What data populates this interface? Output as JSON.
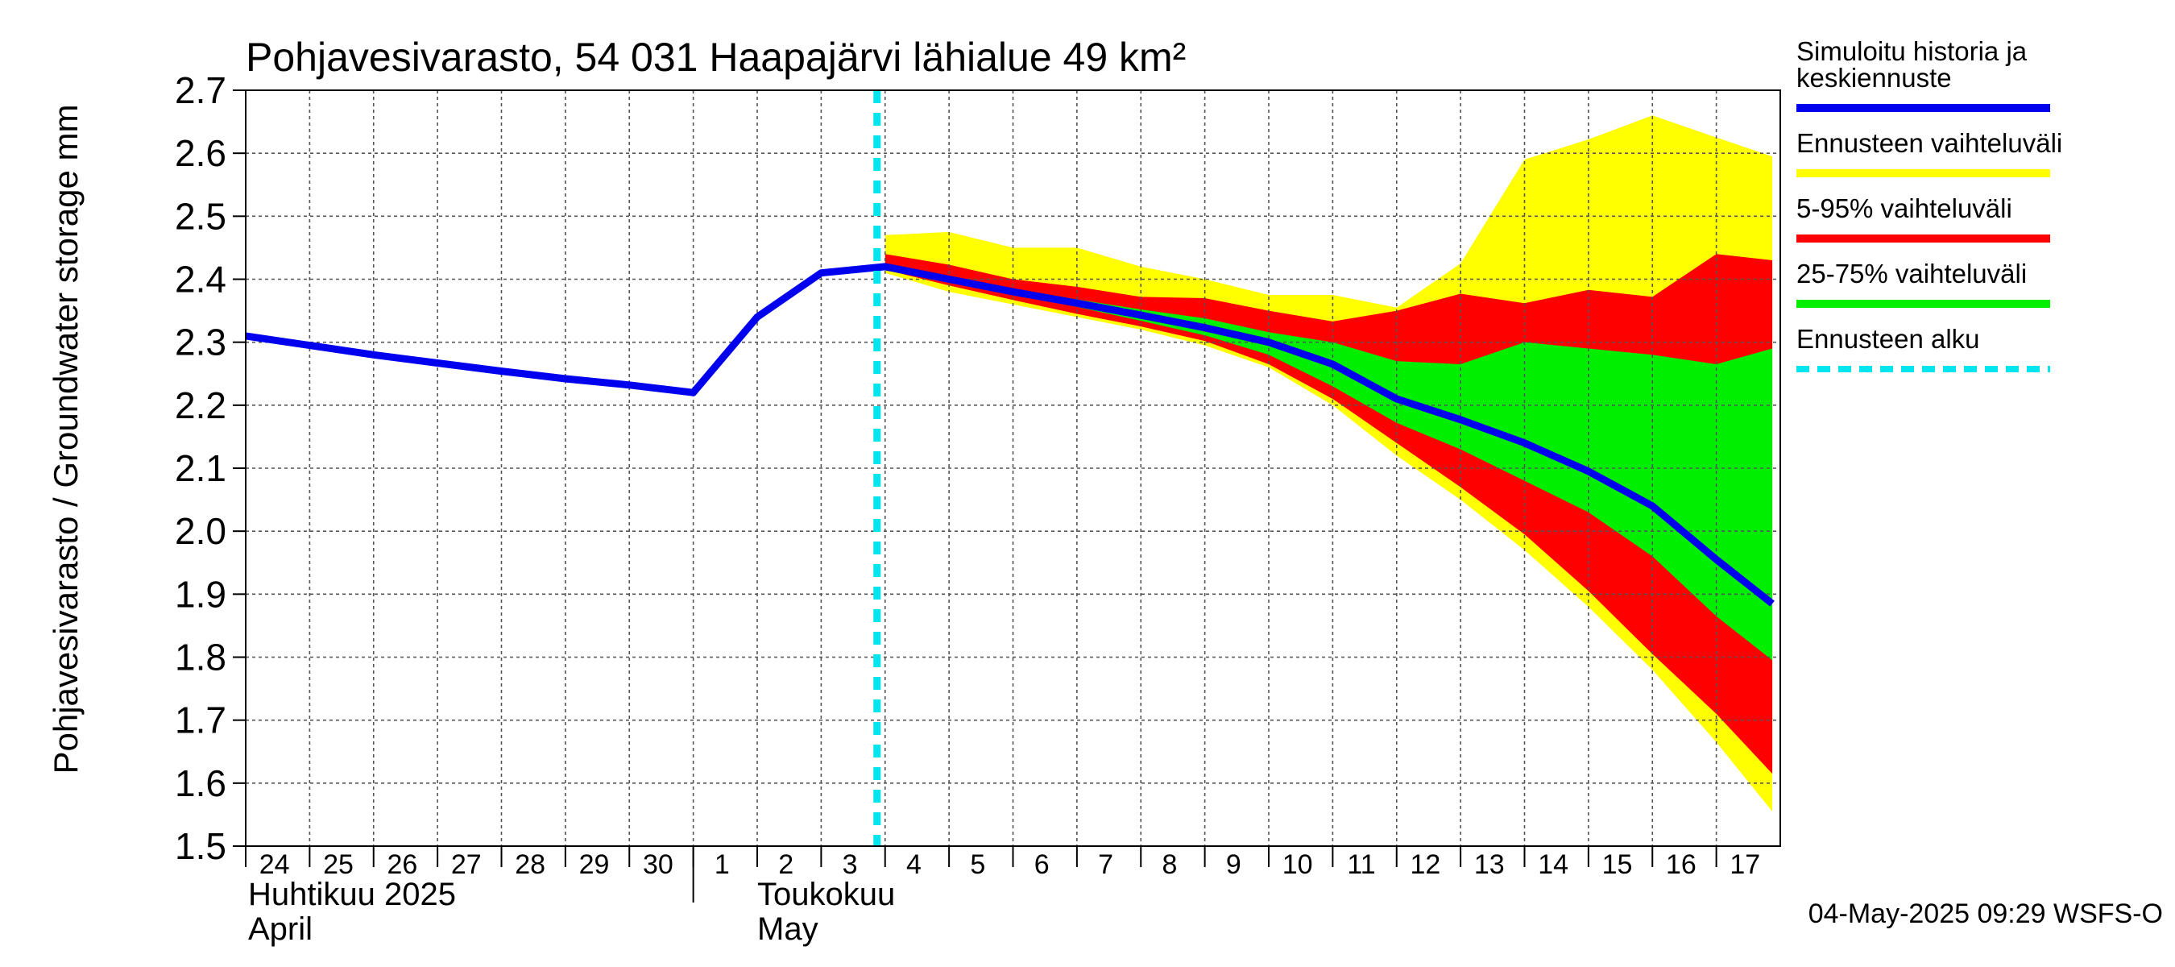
{
  "chart_data": {
    "type": "area",
    "title": "Pohjavesivarasto, 54 031 Haapajärvi lähialue 49 km²",
    "ylabel": "Pohjavesivarasto / Groundwater storage   mm",
    "ylim": [
      1.5,
      2.7
    ],
    "yticks": [
      "1.5",
      "1.6",
      "1.7",
      "1.8",
      "1.9",
      "2.0",
      "2.1",
      "2.2",
      "2.3",
      "2.4",
      "2.5",
      "2.6",
      "2.7"
    ],
    "xticks": [
      "24",
      "25",
      "26",
      "27",
      "28",
      "29",
      "30",
      "1",
      "2",
      "3",
      "4",
      "5",
      "6",
      "7",
      "8",
      "9",
      "10",
      "11",
      "12",
      "13",
      "14",
      "15",
      "16",
      "17"
    ],
    "month_labels": {
      "april_fi": "Huhtikuu  2025",
      "april_en": "April",
      "may_fi": "Toukokuu",
      "may_en": "May"
    },
    "x_start": "2025-04-24",
    "x_end": "2025-05-17",
    "forecast_start": "2025-05-04",
    "grid": true,
    "legend_position": "right",
    "history": {
      "name": "Simuloitu historia ja keskiennuste",
      "color": "#0000ee",
      "dates": [
        "2025-04-24",
        "2025-04-25",
        "2025-04-26",
        "2025-04-27",
        "2025-04-28",
        "2025-04-29",
        "2025-04-30",
        "2025-05-01",
        "2025-05-02",
        "2025-05-03",
        "2025-05-04"
      ],
      "values": [
        2.31,
        2.295,
        2.28,
        2.267,
        2.254,
        2.242,
        2.232,
        2.22,
        2.34,
        2.41,
        2.42
      ]
    },
    "forecast": {
      "dates": [
        "2025-05-04",
        "2025-05-05",
        "2025-05-06",
        "2025-05-07",
        "2025-05-08",
        "2025-05-09",
        "2025-05-10",
        "2025-05-11",
        "2025-05-12",
        "2025-05-13",
        "2025-05-14",
        "2025-05-15",
        "2025-05-16",
        "2025-05-17"
      ],
      "median": [
        2.42,
        2.4,
        2.38,
        2.362,
        2.343,
        2.323,
        2.3,
        2.265,
        2.21,
        2.177,
        2.14,
        2.095,
        2.04,
        1.955
      ],
      "p25": [
        2.42,
        2.398,
        2.376,
        2.356,
        2.334,
        2.311,
        2.28,
        2.23,
        2.172,
        2.13,
        2.08,
        2.03,
        1.96,
        1.865
      ],
      "p75": [
        2.425,
        2.405,
        2.385,
        2.368,
        2.352,
        2.338,
        2.316,
        2.3,
        2.27,
        2.265,
        2.3,
        2.29,
        2.28,
        2.265
      ],
      "p5": [
        2.415,
        2.39,
        2.367,
        2.345,
        2.325,
        2.302,
        2.265,
        2.21,
        2.14,
        2.07,
        1.995,
        1.905,
        1.805,
        1.71
      ],
      "p95": [
        2.44,
        2.423,
        2.4,
        2.388,
        2.372,
        2.37,
        2.35,
        2.333,
        2.35,
        2.377,
        2.362,
        2.383,
        2.372,
        2.44
      ],
      "min": [
        2.41,
        2.38,
        2.36,
        2.34,
        2.32,
        2.295,
        2.26,
        2.2,
        2.12,
        2.05,
        1.97,
        1.88,
        1.78,
        1.665
      ],
      "max": [
        2.47,
        2.475,
        2.45,
        2.45,
        2.42,
        2.4,
        2.375,
        2.375,
        2.355,
        2.425,
        2.59,
        2.622,
        2.66,
        2.625
      ],
      "end_values": {
        "date": "2025-05-17 21:00",
        "median": 1.885,
        "p25": 1.795,
        "p75": 2.29,
        "p5": 1.615,
        "p95": 2.43,
        "min": 1.555,
        "max": 2.595
      }
    },
    "legend": [
      {
        "label_lines": [
          "Simuloitu historia ja",
          "keskiennuste"
        ],
        "color": "#0000ee",
        "style": "solid"
      },
      {
        "label_lines": [
          "Ennusteen vaihteluväli"
        ],
        "color": "#ffff00",
        "style": "solid"
      },
      {
        "label_lines": [
          "5-95% vaihteluväli"
        ],
        "color": "#ff0000",
        "style": "solid"
      },
      {
        "label_lines": [
          "25-75% vaihteluväli"
        ],
        "color": "#00ee00",
        "style": "solid"
      },
      {
        "label_lines": [
          "Ennusteen alku"
        ],
        "color": "#00e5ee",
        "style": "dashed"
      }
    ],
    "colors": {
      "range": "#ffff00",
      "p5_95": "#ff0000",
      "p25_75": "#00ee00",
      "median": "#0000ee",
      "forecast_start": "#00e5ee"
    },
    "footer": "04-May-2025 09:29 WSFS-O"
  }
}
